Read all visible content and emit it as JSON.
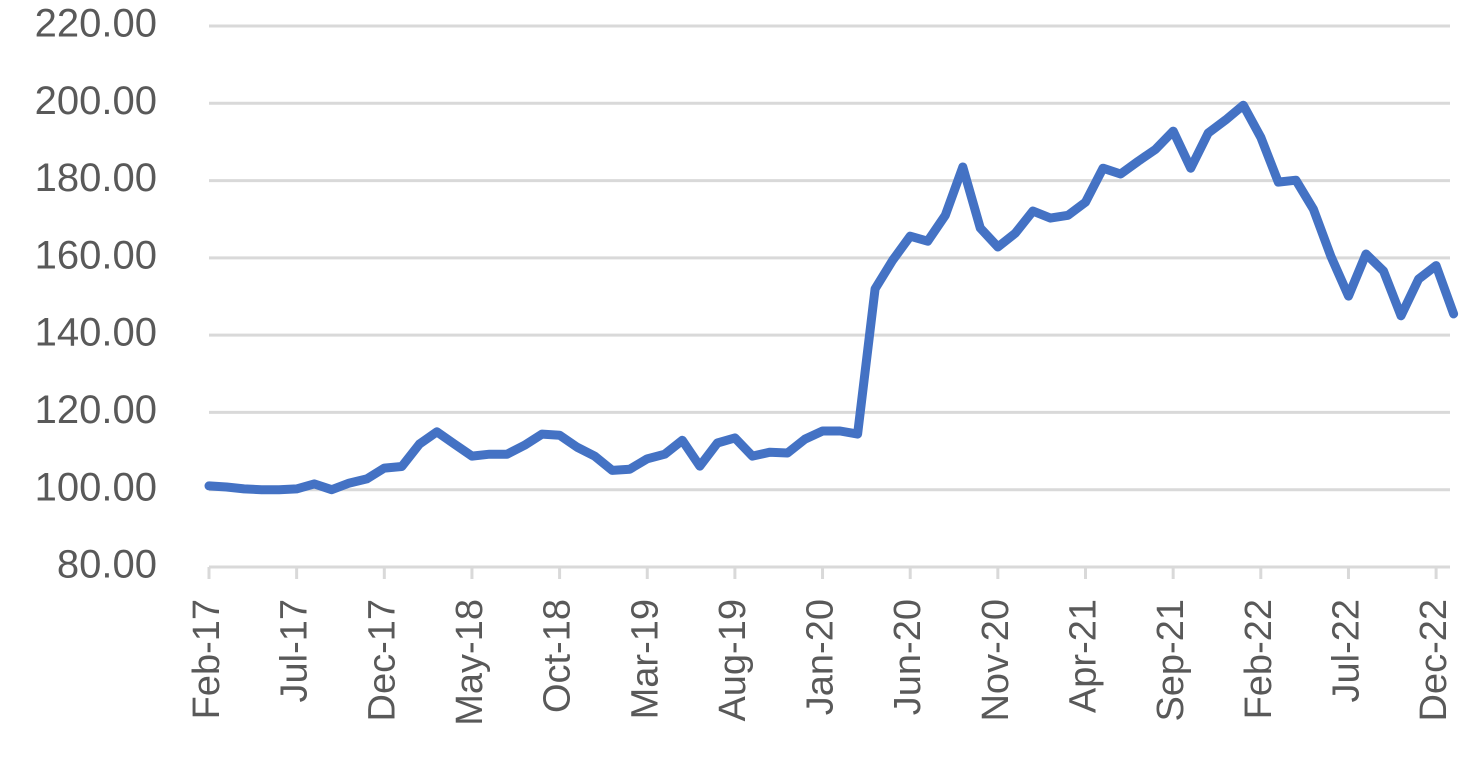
{
  "chart_data": {
    "type": "line",
    "categories": [
      "Feb-17",
      null,
      null,
      null,
      null,
      "Jul-17",
      null,
      null,
      null,
      null,
      "Dec-17",
      null,
      null,
      null,
      null,
      "May-18",
      null,
      null,
      null,
      null,
      "Oct-18",
      null,
      null,
      null,
      null,
      "Mar-19",
      null,
      null,
      null,
      null,
      "Aug-19",
      null,
      null,
      null,
      null,
      "Jan-20",
      null,
      null,
      null,
      null,
      "Jun-20",
      null,
      null,
      null,
      null,
      "Nov-20",
      null,
      null,
      null,
      null,
      "Apr-21",
      null,
      null,
      null,
      null,
      "Sep-21",
      null,
      null,
      null,
      null,
      "Feb-22",
      null,
      null,
      null,
      null,
      "Jul-22",
      null,
      null,
      null,
      null,
      "Dec-22",
      null
    ],
    "values": [
      101,
      100.7,
      100.2,
      100,
      100,
      100.2,
      101.5,
      100,
      101.7,
      102.8,
      105.6,
      106,
      111.8,
      115,
      111.8,
      108.7,
      109.2,
      109.2,
      111.5,
      114.4,
      114.1,
      111,
      108.7,
      105,
      105.3,
      108,
      109.2,
      112.8,
      106.1,
      112.1,
      113.4,
      108.7,
      109.7,
      109.5,
      113.1,
      115.2,
      115.2,
      114.4,
      152,
      159.4,
      165.6,
      164.3,
      171,
      183.5,
      167.7,
      162.8,
      166.4,
      172.1,
      170.3,
      171,
      174.4,
      183.2,
      181.7,
      185,
      188.1,
      192.8,
      183.2,
      192.3,
      195.7,
      199.5,
      191.2,
      179.6,
      180.1,
      172.6,
      160.4,
      150.1,
      161,
      156.6,
      145,
      154.5,
      158,
      145.5
    ],
    "color": "#4472c4",
    "ylim": [
      80,
      220
    ],
    "yticks": [
      {
        "value": 80,
        "label": "80.00"
      },
      {
        "value": 100,
        "label": "100.00"
      },
      {
        "value": 120,
        "label": "120.00"
      },
      {
        "value": 140,
        "label": "140.00"
      },
      {
        "value": 160,
        "label": "160.00"
      },
      {
        "value": 180,
        "label": "180.00"
      },
      {
        "value": 200,
        "label": "200.00"
      },
      {
        "value": 220,
        "label": "220.00"
      }
    ],
    "grid": true
  }
}
